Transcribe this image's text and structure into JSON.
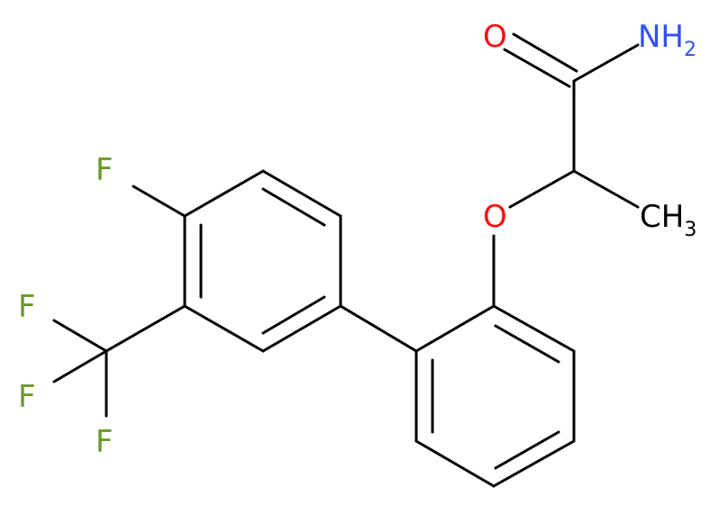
{
  "molecule": {
    "atoms": {
      "carbonyl_oxygen": {
        "text": "O",
        "color": "#FF0D0D"
      },
      "amide_nitrogen": {
        "text": "NH",
        "subscript": "2",
        "color": "#3050F8"
      },
      "ether_oxygen": {
        "text": "O",
        "color": "#FF0D0D"
      },
      "methyl": {
        "text": "CH",
        "subscript": "3",
        "color": "#000000"
      },
      "aryl_fluorine": {
        "text": "F",
        "color": "#6A9A2A"
      },
      "cf3_fluorine_1": {
        "text": "F",
        "color": "#6A9A2A"
      },
      "cf3_fluorine_2": {
        "text": "F",
        "color": "#6A9A2A"
      },
      "cf3_fluorine_3": {
        "text": "F",
        "color": "#6A9A2A"
      }
    }
  }
}
